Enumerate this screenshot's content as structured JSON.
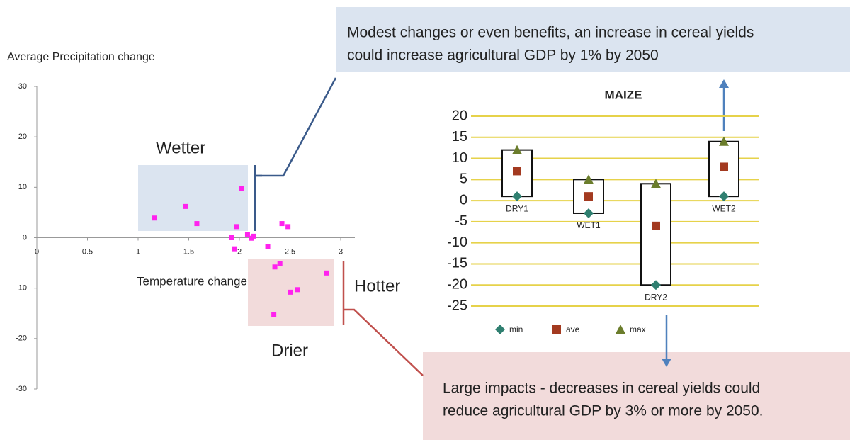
{
  "chart_data": [
    {
      "type": "scatter",
      "ylabel": "Average Precipitation change",
      "xlabel": "Temperature change",
      "color": "#ff22ee",
      "x": [
        1.16,
        1.47,
        1.58,
        2.02,
        1.97,
        1.92,
        1.95,
        2.08,
        2.12,
        2.14,
        2.28,
        2.42,
        2.48,
        2.4,
        2.35,
        2.86,
        2.57,
        2.5,
        2.34
      ],
      "y": [
        3.9,
        6.2,
        2.8,
        9.8,
        2.2,
        0,
        -2.2,
        0.7,
        -0.1,
        0.3,
        -1.7,
        2.8,
        2.2,
        -5.1,
        -5.8,
        -7.0,
        -10.3,
        -10.8,
        -15.3
      ],
      "xlim": [
        0,
        3
      ],
      "xticks": [
        0,
        0.5,
        1,
        1.5,
        2,
        2.5,
        3
      ],
      "ylim": [
        -30,
        30
      ],
      "yticks": [
        30,
        20,
        10,
        0,
        -10,
        -20,
        -30
      ],
      "annotations": [
        "Wetter",
        "Hotter",
        "Drier"
      ]
    },
    {
      "type": "range",
      "title": "MAIZE",
      "categories": [
        "DRY1",
        "WET1",
        "DRY2",
        "WET2"
      ],
      "series": [
        {
          "name": "min",
          "color": "#2f7f70",
          "values": [
            1,
            -3,
            -20,
            1
          ]
        },
        {
          "name": "ave",
          "color": "#a33a20",
          "values": [
            7,
            1,
            -6,
            8
          ]
        },
        {
          "name": "max",
          "color": "#6b7d2c",
          "values": [
            12,
            5,
            4,
            14
          ]
        }
      ],
      "ylim": [
        -25,
        20
      ],
      "yticks": [
        20,
        15,
        10,
        5,
        0,
        -5,
        -10,
        -15,
        -20,
        -25
      ],
      "grid": true,
      "grid_color": "#e6d24a"
    }
  ],
  "callouts": [
    {
      "lines": [
        "Modest changes or even benefits, an increase in cereal yields",
        "could increase agricultural GDP by 1% by 2050"
      ]
    },
    {
      "lines": [
        "Large impacts - decreases in cereal yields  could",
        "reduce agricultural GDP by 3% or more by 2050."
      ]
    }
  ]
}
